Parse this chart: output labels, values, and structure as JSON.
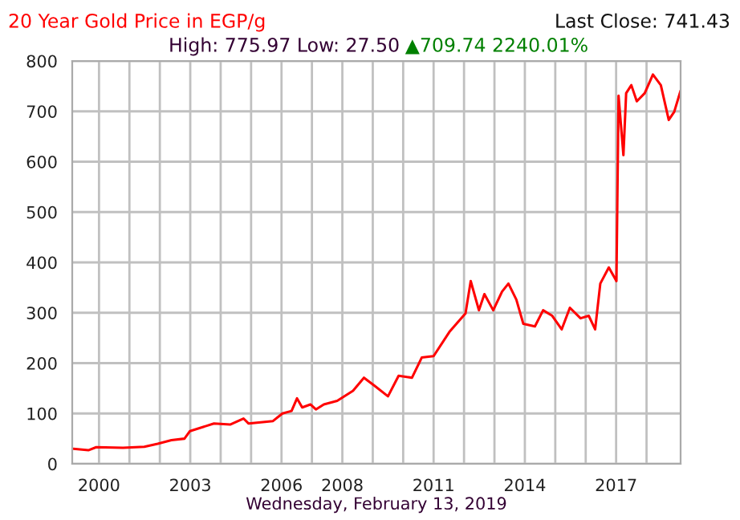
{
  "chart_data": {
    "type": "line",
    "title": "20 Year Gold Price in EGP/g",
    "subtitle": "High: 775.97 Low: 27.50",
    "annotations": [
      "Last Close: 741.43",
      "▲709.74 2240.01%"
    ],
    "xlabel": "Wednesday, February 13, 2019",
    "series": [
      {
        "color": "#ff0000",
        "x": [
          1999.16,
          1999.65,
          1999.91,
          2000.79,
          2001.49,
          2001.93,
          2002.38,
          2002.81,
          2002.99,
          2003.78,
          2004.31,
          2004.75,
          2004.92,
          2005.72,
          2006.03,
          2006.33,
          2006.51,
          2006.68,
          2006.95,
          2007.13,
          2007.39,
          2007.83,
          2008.35,
          2008.71,
          2009.06,
          2009.5,
          2009.85,
          2010.29,
          2010.61,
          2011.0,
          2011.52,
          2012.05,
          2012.22,
          2012.49,
          2012.67,
          2012.96,
          2013.25,
          2013.46,
          2013.72,
          2013.95,
          2014.33,
          2014.6,
          2014.9,
          2015.21,
          2015.48,
          2015.83,
          2016.1,
          2016.31,
          2016.48,
          2016.76,
          2017.01,
          2017.08,
          2017.24,
          2017.33,
          2017.5,
          2017.68,
          2017.94,
          2018.21,
          2018.47,
          2018.73,
          2018.91,
          2019.12
        ],
        "values": [
          30,
          27,
          33,
          32,
          34,
          40,
          47,
          50,
          65,
          80,
          78,
          90,
          80,
          85,
          100,
          105,
          130,
          112,
          118,
          108,
          118,
          125,
          145,
          171,
          155,
          134,
          175,
          171,
          211,
          214,
          262,
          299,
          363,
          305,
          337,
          305,
          342,
          358,
          326,
          278,
          273,
          305,
          294,
          267,
          310,
          289,
          294,
          267,
          358,
          390,
          363,
          731,
          613,
          736,
          752,
          720,
          736,
          773,
          752,
          683,
          699,
          741
        ]
      }
    ],
    "xlim": [
      1999.12,
      2019.12
    ],
    "xticks": [
      2000,
      {
        "value": 2001,
        "label": null
      },
      {
        "value": 2002,
        "label": null
      },
      2003,
      {
        "value": 2004,
        "label": null
      },
      {
        "value": 2005,
        "label": null
      },
      2006,
      {
        "value": 2007,
        "label": null
      },
      2008,
      {
        "value": 2009,
        "label": null
      },
      {
        "value": 2010,
        "label": null
      },
      2011,
      {
        "value": 2012,
        "label": null
      },
      {
        "value": 2013,
        "label": null
      },
      2014,
      {
        "value": 2015,
        "label": null
      },
      {
        "value": 2016,
        "label": null
      },
      2017,
      {
        "value": 2018,
        "label": null
      }
    ],
    "ylim": [
      0,
      800
    ],
    "yticks": [
      0,
      100,
      200,
      300,
      400,
      500,
      600,
      700,
      800
    ],
    "grid": true
  }
}
